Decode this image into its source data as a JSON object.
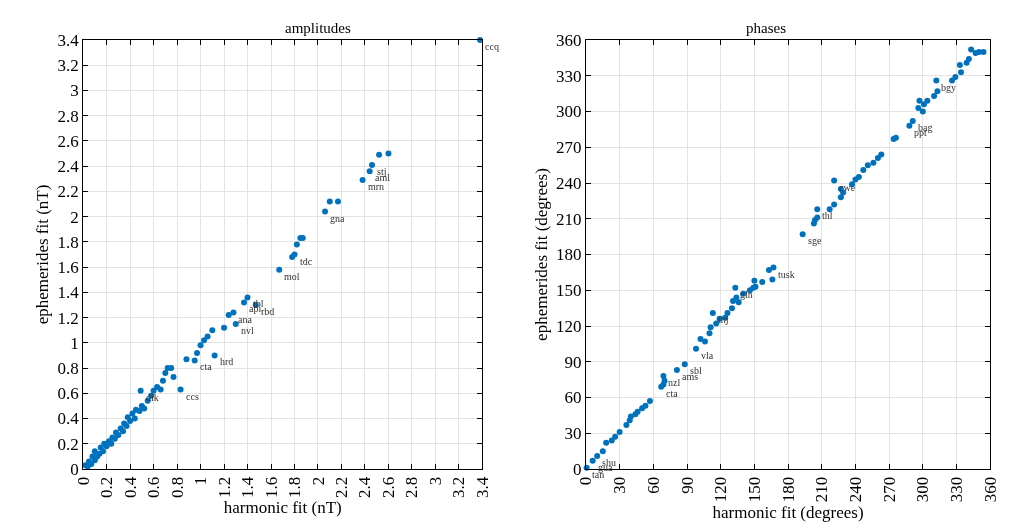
{
  "chart_data": [
    {
      "type": "scatter",
      "title": "amplitudes",
      "xlabel": "harmonic fit (nT)",
      "ylabel": "ephemerides fit (nT)",
      "color": "#0072bd",
      "marker": "circle",
      "grid": true,
      "x": [
        0.02,
        0.04,
        0.05,
        0.07,
        0.08,
        0.1,
        0.1,
        0.12,
        0.14,
        0.15,
        0.17,
        0.18,
        0.2,
        0.22,
        0.24,
        0.25,
        0.27,
        0.28,
        0.3,
        0.32,
        0.34,
        0.35,
        0.37,
        0.38,
        0.4,
        0.42,
        0.44,
        0.45,
        0.48,
        0.5,
        0.52,
        0.55,
        0.49,
        0.58,
        0.6,
        0.63,
        0.66,
        0.68,
        0.7,
        0.72,
        0.75,
        0.77,
        0.83,
        0.88,
        0.95,
        0.97,
        1.0,
        1.03,
        1.06,
        1.12,
        1.1,
        1.2,
        1.24,
        1.28,
        1.3,
        1.37,
        1.4,
        1.47,
        1.67,
        1.78,
        1.8,
        1.82,
        1.85,
        1.87,
        2.06,
        2.1,
        2.17,
        2.38,
        2.44,
        2.46,
        2.52,
        2.6,
        3.38
      ],
      "values": [
        0.03,
        0.02,
        0.06,
        0.04,
        0.1,
        0.07,
        0.14,
        0.1,
        0.12,
        0.17,
        0.14,
        0.2,
        0.18,
        0.22,
        0.2,
        0.25,
        0.24,
        0.29,
        0.27,
        0.32,
        0.3,
        0.36,
        0.34,
        0.41,
        0.38,
        0.44,
        0.4,
        0.47,
        0.46,
        0.5,
        0.48,
        0.54,
        0.62,
        0.58,
        0.62,
        0.65,
        0.63,
        0.7,
        0.76,
        0.8,
        0.8,
        0.73,
        0.63,
        0.87,
        0.86,
        0.92,
        0.98,
        1.02,
        1.05,
        0.9,
        1.1,
        1.12,
        1.22,
        1.24,
        1.15,
        1.32,
        1.36,
        1.3,
        1.58,
        1.68,
        1.7,
        1.78,
        1.83,
        1.83,
        2.04,
        2.12,
        2.12,
        2.29,
        2.36,
        2.41,
        2.49,
        2.5,
        3.4
      ],
      "xlim": [
        0,
        3.4
      ],
      "ylim": [
        0,
        3.4
      ],
      "xticks": [
        0,
        0.2,
        0.4,
        0.6,
        0.8,
        1,
        1.2,
        1.4,
        1.6,
        1.8,
        2,
        2.2,
        2.4,
        2.6,
        2.8,
        3,
        3.2,
        3.4
      ],
      "yticks": [
        0,
        0.2,
        0.4,
        0.6,
        0.8,
        1,
        1.2,
        1.4,
        1.6,
        1.8,
        2,
        2.2,
        2.4,
        2.6,
        2.8,
        3,
        3.2,
        3.4
      ],
      "annotations": [
        {
          "text": "dik",
          "x": 0.49,
          "y": 0.62
        },
        {
          "text": "ccs",
          "x": 0.83,
          "y": 0.63
        },
        {
          "text": "cta",
          "x": 0.95,
          "y": 0.86
        },
        {
          "text": "hrd",
          "x": 1.12,
          "y": 0.9
        },
        {
          "text": "nvl",
          "x": 1.3,
          "y": 1.15
        },
        {
          "text": "ana",
          "x": 1.28,
          "y": 1.24
        },
        {
          "text": "api",
          "x": 1.37,
          "y": 1.32
        },
        {
          "text": "rbd",
          "x": 1.47,
          "y": 1.3
        },
        {
          "text": "tbl",
          "x": 1.4,
          "y": 1.36
        },
        {
          "text": "mol",
          "x": 1.67,
          "y": 1.58
        },
        {
          "text": "tdc",
          "x": 1.8,
          "y": 1.7
        },
        {
          "text": "gna",
          "x": 2.06,
          "y": 2.04
        },
        {
          "text": "mrn",
          "x": 2.38,
          "y": 2.29
        },
        {
          "text": "aml",
          "x": 2.44,
          "y": 2.36
        },
        {
          "text": "stj",
          "x": 2.46,
          "y": 2.41
        },
        {
          "text": "ccq",
          "x": 3.38,
          "y": 3.4
        }
      ]
    },
    {
      "type": "scatter",
      "title": "phases",
      "xlabel": "harmonic fit (degrees)",
      "ylabel": "ephemerides fit (degrees)",
      "color": "#0072bd",
      "marker": "circle",
      "grid": true,
      "x": [
        0.6,
        6,
        10,
        15,
        18,
        23,
        26,
        30,
        36,
        39,
        40,
        44,
        46,
        50,
        53,
        57,
        67,
        69,
        70,
        69,
        81,
        88,
        98,
        102,
        106,
        110,
        111,
        116,
        113,
        119,
        124,
        126,
        130,
        136,
        131,
        134,
        133,
        140,
        146,
        151,
        149,
        157,
        150,
        166,
        163,
        167,
        193,
        203,
        204,
        206,
        206,
        217,
        221,
        227,
        229,
        227,
        221,
        237,
        240,
        243,
        247,
        251,
        256,
        260,
        263,
        274,
        276,
        288,
        291,
        296,
        297,
        300,
        301,
        304,
        310,
        313,
        312,
        326,
        329,
        333,
        334,
        339,
        341,
        343,
        347,
        350,
        354
      ],
      "values": [
        1,
        7,
        11,
        15,
        22,
        24,
        27,
        31,
        37,
        41,
        44,
        46,
        48,
        51,
        53,
        57,
        69,
        71,
        74,
        78,
        83,
        88,
        101,
        109,
        107,
        114,
        119,
        122,
        131,
        126,
        127,
        131,
        135,
        140,
        141,
        144,
        152,
        147,
        150,
        153,
        152,
        157,
        158,
        159,
        167,
        169,
        197,
        206,
        209,
        211,
        218,
        218,
        222,
        228,
        232,
        235,
        242,
        239,
        243,
        245,
        251,
        255,
        257,
        261,
        264,
        277,
        278,
        288,
        292,
        303,
        309,
        300,
        306,
        309,
        313,
        317,
        326,
        326,
        329,
        339,
        333,
        341,
        344,
        352,
        349,
        350,
        350
      ],
      "xlim": [
        0,
        360
      ],
      "ylim": [
        0,
        360
      ],
      "xticks": [
        0,
        30,
        60,
        90,
        120,
        150,
        180,
        210,
        240,
        270,
        300,
        330,
        360
      ],
      "yticks": [
        0,
        30,
        60,
        90,
        120,
        150,
        180,
        210,
        240,
        270,
        300,
        330,
        360
      ],
      "annotations": [
        {
          "text": "tan",
          "x": 0.6,
          "y": 1
        },
        {
          "text": "gua",
          "x": 6,
          "y": 7
        },
        {
          "text": "shu",
          "x": 10,
          "y": 11
        },
        {
          "text": "cta",
          "x": 67,
          "y": 69
        },
        {
          "text": "nzl",
          "x": 69,
          "y": 78
        },
        {
          "text": "ams",
          "x": 81,
          "y": 83
        },
        {
          "text": "sbl",
          "x": 88,
          "y": 88
        },
        {
          "text": "vla",
          "x": 98,
          "y": 101
        },
        {
          "text": "thj",
          "x": 113,
          "y": 131
        },
        {
          "text": "gln",
          "x": 133,
          "y": 152
        },
        {
          "text": "tusk",
          "x": 167,
          "y": 169
        },
        {
          "text": "sge",
          "x": 193,
          "y": 197
        },
        {
          "text": "thl",
          "x": 206,
          "y": 218
        },
        {
          "text": "cwe",
          "x": 221,
          "y": 242
        },
        {
          "text": "ppt",
          "x": 288,
          "y": 288
        },
        {
          "text": "bag",
          "x": 291,
          "y": 292
        },
        {
          "text": "bgy",
          "x": 312,
          "y": 326
        }
      ]
    }
  ]
}
